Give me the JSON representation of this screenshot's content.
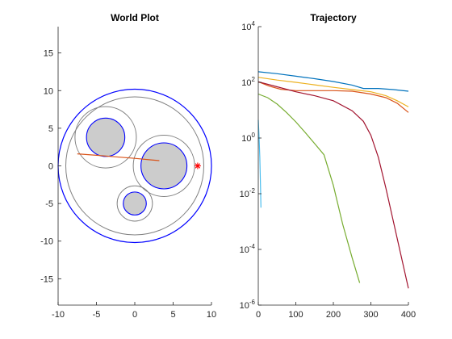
{
  "chart_data": [
    {
      "type": "scatter",
      "title": "World Plot",
      "xlim": [
        -10,
        10
      ],
      "ylim": [
        -18.5,
        18.5
      ],
      "x_ticks": [
        -10,
        -5,
        0,
        5,
        10
      ],
      "y_ticks": [
        -15,
        -10,
        -5,
        0,
        5,
        10,
        15
      ],
      "x_tick_labels": [
        "-10",
        "-5",
        "0",
        "5",
        "10"
      ],
      "y_tick_labels": [
        "-15",
        "-10",
        "-5",
        "0",
        "5",
        "10",
        "15"
      ],
      "grid": false,
      "boundary": {
        "cx": 0,
        "cy": 0,
        "r": 10,
        "color": "#0000ff"
      },
      "inner_circle": {
        "cx": 0,
        "cy": 0,
        "r": 9,
        "color": "#808080"
      },
      "obstacles": [
        {
          "cx": -3.8,
          "cy": 3.8,
          "r": 2.5,
          "margin_r": 4.0
        },
        {
          "cx": 3.8,
          "cy": 0.0,
          "r": 3.0,
          "margin_r": 4.0
        },
        {
          "cx": 0.0,
          "cy": -5.0,
          "r": 1.5,
          "margin_r": 2.3
        }
      ],
      "obstacle_fill": "#cccccc",
      "obstacle_edge": "#0000ff",
      "margin_color": "#808080",
      "path": {
        "color": "#d95319",
        "x": [
          -7.5,
          -5.0,
          -2.5,
          0.0,
          2.0,
          3.2
        ],
        "y": [
          1.6,
          1.4,
          1.2,
          1.0,
          0.8,
          0.7
        ]
      },
      "goal": {
        "x": 8.2,
        "y": 0.0,
        "color": "#ff0000",
        "marker": "*"
      }
    },
    {
      "type": "line",
      "title": "Trajectory",
      "xlim": [
        0,
        400
      ],
      "ylim": [
        -6,
        4
      ],
      "y_scale": "log",
      "x_ticks": [
        0,
        100,
        200,
        300,
        400
      ],
      "x_tick_labels": [
        "0",
        "100",
        "200",
        "300",
        "400"
      ],
      "y_ticks": [
        -6,
        -4,
        -2,
        0,
        2,
        4
      ],
      "y_tick_base": "10",
      "y_tick_exponents": [
        "-6",
        "-4",
        "-2",
        "0",
        "2",
        "4"
      ],
      "grid": false,
      "series": [
        {
          "color": "#0072bd",
          "x": [
            0,
            50,
            100,
            150,
            200,
            250,
            280,
            320,
            360,
            400
          ],
          "y": [
            2.38,
            2.31,
            2.22,
            2.13,
            2.03,
            1.9,
            1.78,
            1.78,
            1.74,
            1.68
          ]
        },
        {
          "color": "#edb120",
          "x": [
            0,
            50,
            100,
            150,
            200,
            250,
            300,
            340,
            370,
            400
          ],
          "y": [
            2.18,
            2.08,
            2.0,
            1.91,
            1.82,
            1.74,
            1.66,
            1.52,
            1.34,
            1.12
          ]
        },
        {
          "color": "#d95319",
          "x": [
            0,
            30,
            60,
            100,
            150,
            200,
            250,
            300,
            340,
            370,
            400
          ],
          "y": [
            2.02,
            1.86,
            1.75,
            1.7,
            1.7,
            1.7,
            1.68,
            1.58,
            1.45,
            1.25,
            0.92
          ]
        },
        {
          "color": "#a2142f",
          "x": [
            0,
            50,
            100,
            150,
            200,
            250,
            280,
            300,
            320,
            340,
            360,
            380,
            400
          ],
          "y": [
            2.02,
            1.84,
            1.66,
            1.52,
            1.34,
            0.98,
            0.6,
            0.1,
            -0.7,
            -1.8,
            -3.0,
            -4.2,
            -5.4
          ]
        },
        {
          "color": "#77ac30",
          "x": [
            0,
            25,
            50,
            75,
            100,
            125,
            150,
            175,
            200,
            225,
            250,
            270
          ],
          "y": [
            1.58,
            1.45,
            1.22,
            0.92,
            0.58,
            0.2,
            -0.2,
            -0.6,
            -1.7,
            -3.1,
            -4.3,
            -5.2
          ]
        },
        {
          "color": "#4dbeee",
          "x": [
            0,
            2,
            4,
            6,
            7
          ],
          "y": [
            0.65,
            0.1,
            -0.7,
            -1.8,
            -2.5
          ]
        }
      ]
    }
  ]
}
